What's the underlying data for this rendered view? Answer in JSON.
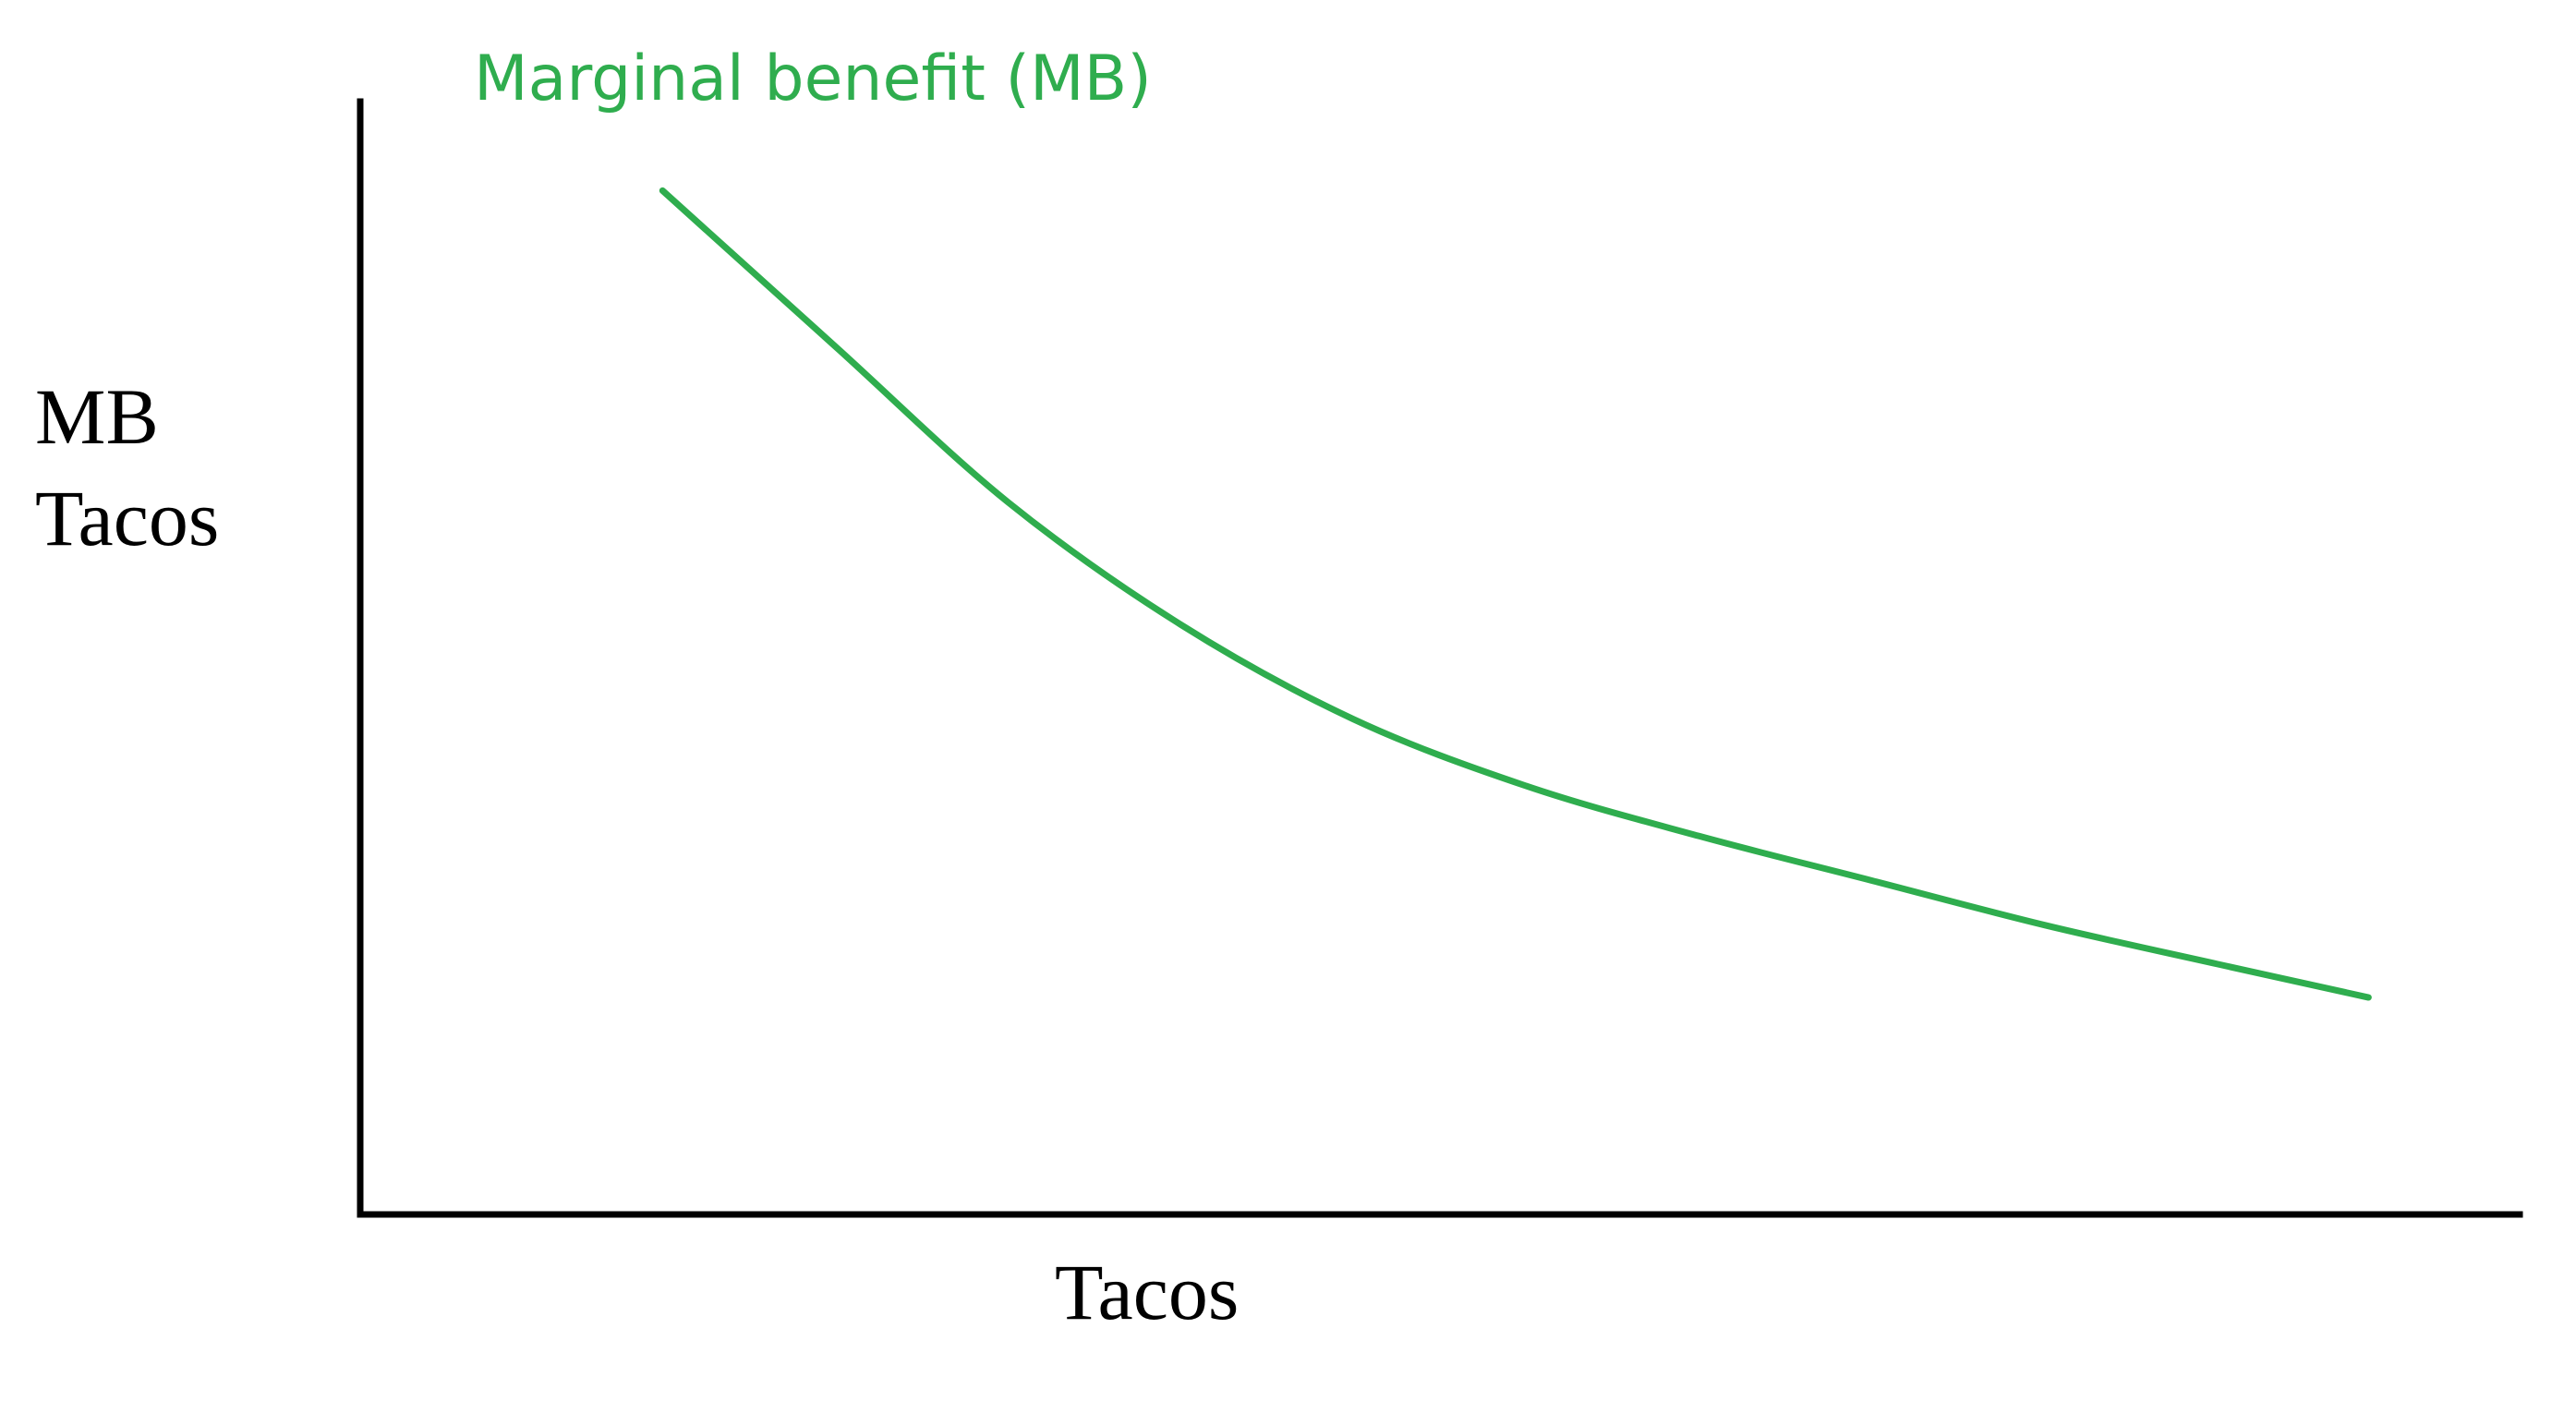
{
  "chart_data": {
    "type": "line",
    "title": "",
    "xlabel": "Tacos",
    "ylabel_lines": [
      "MB",
      "Tacos"
    ],
    "x_ticks": [],
    "y_ticks": [],
    "xlim": [
      0,
      100
    ],
    "ylim": [
      0,
      100
    ],
    "grid": false,
    "legend": "none",
    "series": [
      {
        "name": "Marginal benefit (MB)",
        "color": "#2fad4e",
        "x": [
          14,
          22,
          30,
          38,
          46,
          54,
          62,
          70,
          78,
          86,
          93
        ],
        "y": [
          92,
          78,
          64,
          53,
          44.5,
          38.5,
          34,
          30,
          26,
          22.5,
          19.5
        ]
      }
    ],
    "axis_color": "#000000"
  }
}
